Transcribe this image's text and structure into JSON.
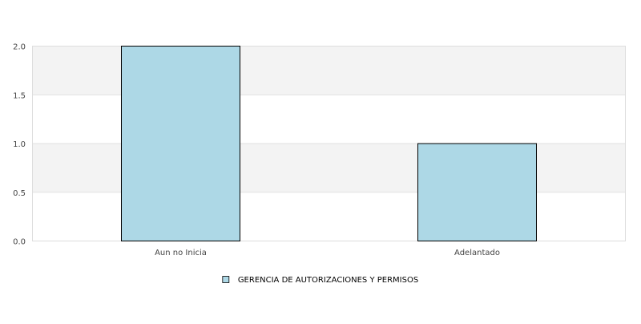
{
  "chart_data": {
    "type": "bar",
    "categories": [
      "Aun no Inicia",
      "Adelantado"
    ],
    "series": [
      {
        "name": "GERENCIA DE AUTORIZACIONES Y PERMISOS",
        "values": [
          2,
          1
        ],
        "color": "#add8e6"
      }
    ],
    "title": "",
    "xlabel": "",
    "ylabel": "",
    "ylim": [
      0,
      2
    ],
    "yticks": [
      0,
      0.5,
      1,
      1.5,
      2
    ],
    "ytick_labels": [
      "0.0",
      "0.5",
      "1.0",
      "1.5",
      "2.0"
    ],
    "grid": true,
    "band_color": "#f3f3f3",
    "legend_position": "bottom"
  }
}
